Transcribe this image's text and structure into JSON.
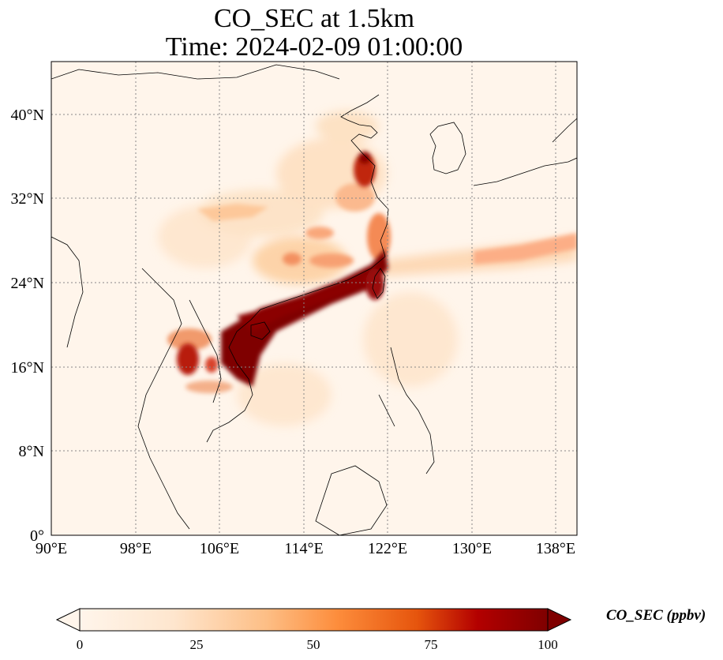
{
  "title_line1": "CO_SEC at 1.5km",
  "title_line2": "Time: 2024-02-09 01:00:00",
  "colors": {
    "background": "#ffffff",
    "low": "#fff5eb",
    "mid_low": "#fdd0a2",
    "mid": "#fd8d3c",
    "mid_high": "#d94801",
    "high": "#7f0000",
    "gridline": "#888888",
    "coastline": "#000000"
  },
  "chart_data": {
    "type": "heatmap",
    "projection": "PlateCarree",
    "variable": "CO_SEC",
    "level": "1.5km",
    "time": "2024-02-09 01:00:00",
    "lon_range": [
      90,
      140
    ],
    "lat_range": [
      0,
      45
    ],
    "grid": true,
    "grid_style": "dotted",
    "x_ticks": [
      "90°E",
      "98°E",
      "106°E",
      "114°E",
      "122°E",
      "130°E",
      "138°E"
    ],
    "y_ticks": [
      "0°",
      "8°N",
      "16°N",
      "24°N",
      "32°N",
      "40°N"
    ],
    "colorbar": {
      "label": "CO_SEC (ppbv)",
      "orientation": "horizontal",
      "range": [
        0,
        100
      ],
      "ticks": [
        "0",
        "25",
        "50",
        "75",
        "100"
      ],
      "extend": "both",
      "colormap": "OrRd-like"
    },
    "regions_high_concentration": [
      {
        "area": "South China coast / Gulf of Tonkin",
        "level": "≥100"
      },
      {
        "area": "Northern Vietnam / Laos",
        "level": "75-100"
      },
      {
        "area": "Shandong Peninsula",
        "level": "75-100"
      },
      {
        "area": "Taiwan west coast",
        "level": "75-100"
      }
    ]
  }
}
